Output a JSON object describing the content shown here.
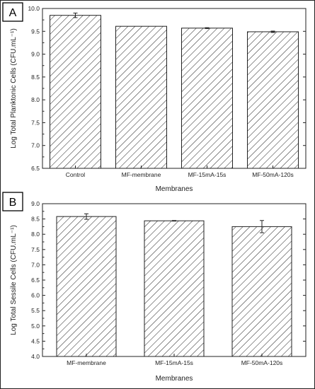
{
  "chart_data": [
    {
      "panel": "A",
      "type": "bar",
      "categories": [
        "Control",
        "MF-membrane",
        "MF-15mA-15s",
        "MF-50mA-120s"
      ],
      "values": [
        9.85,
        9.61,
        9.57,
        9.49
      ],
      "errors": [
        0.05,
        0.0,
        0.01,
        0.015
      ],
      "xlabel": "Membranes",
      "ylabel": "Log Total Planktonic Cells (CFU.mL⁻¹)",
      "ylim": [
        6.5,
        10.0
      ],
      "yticks": [
        "6.5",
        "7.0",
        "7.5",
        "8.0",
        "8.5",
        "9.0",
        "9.5",
        "10.0"
      ],
      "bar_fill": "diagonal-hatch",
      "grid": false
    },
    {
      "panel": "B",
      "type": "bar",
      "categories": [
        "MF-membrane",
        "MF-15mA-15s",
        "MF-50mA-120s"
      ],
      "values": [
        8.58,
        8.44,
        8.25
      ],
      "errors": [
        0.09,
        0.01,
        0.2
      ],
      "xlabel": "Membranes",
      "ylabel": "Log Total Sessile Cells (CFU.mL⁻¹)",
      "ylim": [
        4.0,
        9.0
      ],
      "yticks": [
        "4.0",
        "4.5",
        "5.0",
        "5.5",
        "6.0",
        "6.5",
        "7.0",
        "7.5",
        "8.0",
        "8.5",
        "9.0"
      ],
      "bar_fill": "diagonal-hatch",
      "grid": false
    }
  ],
  "colors": {
    "axis": "#222222",
    "bar_stroke": "#222222",
    "hatch": "#222222",
    "frame": "#222222"
  }
}
